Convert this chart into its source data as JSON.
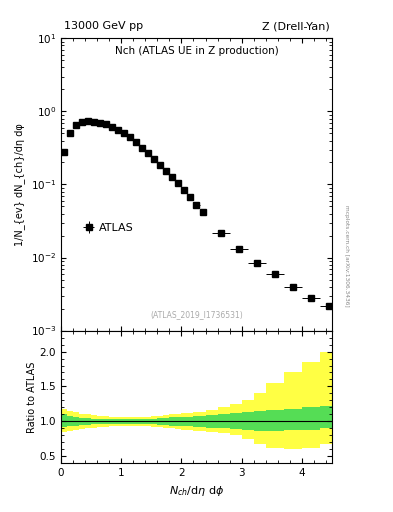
{
  "title_left": "13000 GeV pp",
  "title_right": "Z (Drell-Yan)",
  "plot_title": "Nch (ATLAS UE in Z production)",
  "ylabel_main": "1/N_{ev} dN_{ch}/dη dφ",
  "ylabel_ratio": "Ratio to ATLAS",
  "watermark": "(ATLAS_2019_I1736531)",
  "arxiv_text": "mcplots.cern.ch [arXiv:1306.3436]",
  "data_x": [
    0.05,
    0.15,
    0.25,
    0.35,
    0.45,
    0.55,
    0.65,
    0.75,
    0.85,
    0.95,
    1.05,
    1.15,
    1.25,
    1.35,
    1.45,
    1.55,
    1.65,
    1.75,
    1.85,
    1.95,
    2.05,
    2.15,
    2.25,
    2.35,
    2.65,
    2.95,
    3.25,
    3.55,
    3.85,
    4.15,
    4.45
  ],
  "data_y": [
    0.28,
    0.5,
    0.65,
    0.72,
    0.73,
    0.72,
    0.7,
    0.67,
    0.62,
    0.56,
    0.5,
    0.44,
    0.38,
    0.32,
    0.27,
    0.22,
    0.185,
    0.155,
    0.128,
    0.105,
    0.085,
    0.068,
    0.053,
    0.042,
    0.022,
    0.013,
    0.0085,
    0.006,
    0.004,
    0.0028,
    0.0022
  ],
  "data_xerr": [
    0.05,
    0.05,
    0.05,
    0.05,
    0.05,
    0.05,
    0.05,
    0.05,
    0.05,
    0.05,
    0.05,
    0.05,
    0.05,
    0.05,
    0.05,
    0.05,
    0.05,
    0.05,
    0.05,
    0.05,
    0.05,
    0.05,
    0.05,
    0.05,
    0.15,
    0.15,
    0.15,
    0.15,
    0.15,
    0.15,
    0.15
  ],
  "data_yerr": [
    0.015,
    0.02,
    0.02,
    0.02,
    0.02,
    0.02,
    0.02,
    0.02,
    0.018,
    0.016,
    0.015,
    0.013,
    0.012,
    0.01,
    0.009,
    0.008,
    0.007,
    0.006,
    0.005,
    0.004,
    0.003,
    0.003,
    0.002,
    0.002,
    0.001,
    0.0008,
    0.0006,
    0.0004,
    0.0003,
    0.0002,
    0.0002
  ],
  "marker_color": "black",
  "marker": "s",
  "marker_size": 4,
  "ylim_main": [
    0.001,
    10
  ],
  "ylim_ratio": [
    0.4,
    2.3
  ],
  "xlim": [
    0.0,
    4.5
  ],
  "ratio_edges": [
    0.0,
    0.1,
    0.2,
    0.3,
    0.4,
    0.5,
    0.6,
    0.7,
    0.8,
    0.9,
    1.0,
    1.1,
    1.2,
    1.3,
    1.4,
    1.5,
    1.6,
    1.7,
    1.8,
    1.9,
    2.0,
    2.2,
    2.4,
    2.6,
    2.8,
    3.0,
    3.2,
    3.4,
    3.7,
    4.0,
    4.3,
    4.5
  ],
  "ratio_green_upper": [
    1.1,
    1.08,
    1.06,
    1.05,
    1.05,
    1.04,
    1.04,
    1.04,
    1.03,
    1.03,
    1.03,
    1.03,
    1.03,
    1.04,
    1.04,
    1.04,
    1.05,
    1.05,
    1.06,
    1.06,
    1.07,
    1.08,
    1.09,
    1.1,
    1.12,
    1.14,
    1.15,
    1.16,
    1.18,
    1.2,
    1.22,
    1.22
  ],
  "ratio_green_lower": [
    0.92,
    0.93,
    0.94,
    0.95,
    0.95,
    0.96,
    0.96,
    0.96,
    0.97,
    0.97,
    0.97,
    0.97,
    0.97,
    0.96,
    0.96,
    0.96,
    0.95,
    0.95,
    0.94,
    0.94,
    0.93,
    0.92,
    0.91,
    0.9,
    0.89,
    0.88,
    0.87,
    0.87,
    0.88,
    0.88,
    0.9,
    0.9
  ],
  "ratio_yellow_upper": [
    1.18,
    1.15,
    1.13,
    1.11,
    1.1,
    1.09,
    1.08,
    1.08,
    1.07,
    1.07,
    1.07,
    1.07,
    1.07,
    1.07,
    1.07,
    1.08,
    1.08,
    1.09,
    1.1,
    1.11,
    1.12,
    1.14,
    1.16,
    1.2,
    1.25,
    1.3,
    1.4,
    1.55,
    1.7,
    1.85,
    2.0,
    2.1
  ],
  "ratio_yellow_lower": [
    0.85,
    0.87,
    0.88,
    0.89,
    0.9,
    0.91,
    0.92,
    0.92,
    0.93,
    0.93,
    0.93,
    0.93,
    0.93,
    0.93,
    0.93,
    0.92,
    0.92,
    0.91,
    0.9,
    0.89,
    0.88,
    0.87,
    0.85,
    0.83,
    0.8,
    0.75,
    0.68,
    0.62,
    0.6,
    0.62,
    0.68,
    0.72
  ],
  "green_color": "#55dd55",
  "yellow_color": "#ffff44",
  "legend_label": "ATLAS",
  "bg_color": "#ffffff"
}
